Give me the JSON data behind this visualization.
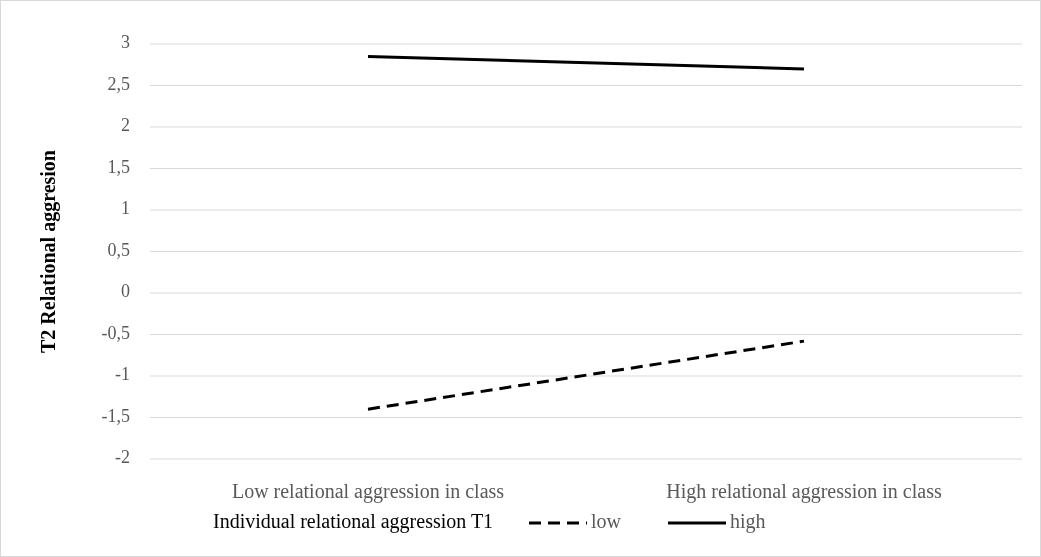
{
  "chart_data": {
    "type": "line",
    "ylabel": "T2 Relational aggresion",
    "legend_title": "Individual relational aggression T1",
    "categories": [
      "Low relational aggression in class",
      "High relational aggression in class"
    ],
    "series": [
      {
        "name": "low",
        "color": "#000000",
        "values": [
          -1.4,
          -0.58
        ],
        "line_style": "dashed"
      },
      {
        "name": "high",
        "color": "#000000",
        "values": [
          2.85,
          2.7
        ],
        "line_style": "solid"
      }
    ],
    "ylim": [
      -2,
      3
    ],
    "yticks": [
      {
        "value": -2,
        "label": "-2"
      },
      {
        "value": -1.5,
        "label": "-1,5"
      },
      {
        "value": -1,
        "label": "-1"
      },
      {
        "value": -0.5,
        "label": "-0,5"
      },
      {
        "value": 0,
        "label": "0"
      },
      {
        "value": 0.5,
        "label": "0,5"
      },
      {
        "value": 1,
        "label": "1"
      },
      {
        "value": 1.5,
        "label": "1,5"
      },
      {
        "value": 2,
        "label": "2"
      },
      {
        "value": 2.5,
        "label": "2,5"
      },
      {
        "value": 3,
        "label": "3"
      }
    ],
    "grid": "y",
    "legend": "bottom",
    "marker": "none"
  }
}
